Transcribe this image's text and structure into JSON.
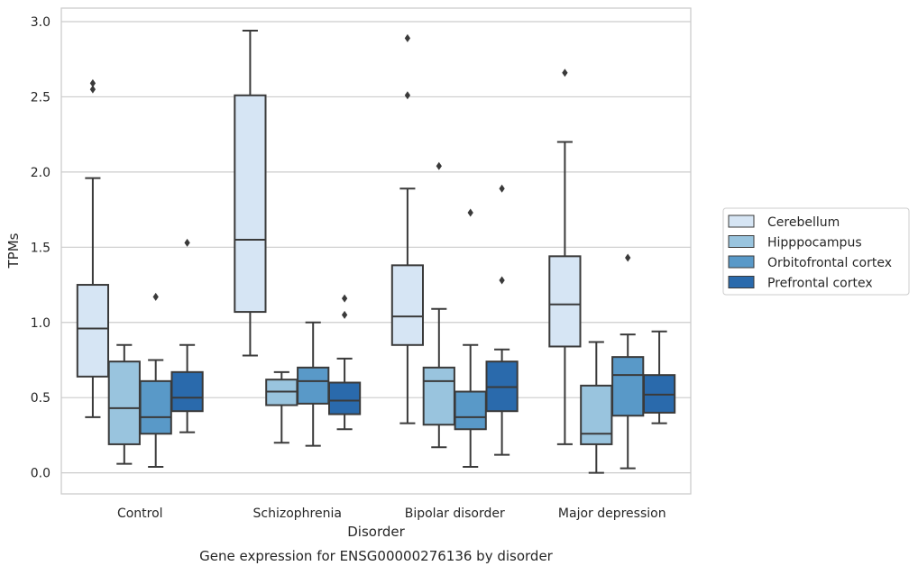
{
  "chart_data": {
    "type": "boxplot",
    "title": "",
    "caption": "Gene expression for ENSG00000276136 by disorder",
    "xlabel": "Disorder",
    "ylabel": "TPMs",
    "ylim": [
      -0.14,
      3.09
    ],
    "yticks": [
      0.0,
      0.5,
      1.0,
      1.5,
      2.0,
      2.5,
      3.0
    ],
    "ytick_labels": [
      "0.0",
      "0.5",
      "1.0",
      "1.5",
      "2.0",
      "2.5",
      "3.0"
    ],
    "categories": [
      "Control",
      "Schizophrenia",
      "Bipolar disorder",
      "Major depression"
    ],
    "grid": "horizontal",
    "legend_position": "outside-right",
    "series": [
      {
        "name": "Cerebellum",
        "color": "#d6e5f4",
        "boxes": [
          {
            "whisker_low": 0.37,
            "q1": 0.64,
            "median": 0.96,
            "q3": 1.25,
            "whisker_high": 1.96,
            "outliers": [
              2.55,
              2.59
            ]
          },
          {
            "whisker_low": 0.78,
            "q1": 1.07,
            "median": 1.55,
            "q3": 2.51,
            "whisker_high": 2.94,
            "outliers": []
          },
          {
            "whisker_low": 0.33,
            "q1": 0.85,
            "median": 1.04,
            "q3": 1.38,
            "whisker_high": 1.89,
            "outliers": [
              2.51,
              2.89
            ]
          },
          {
            "whisker_low": 0.19,
            "q1": 0.84,
            "median": 1.12,
            "q3": 1.44,
            "whisker_high": 2.2,
            "outliers": [
              2.66
            ]
          }
        ]
      },
      {
        "name": "Hipppocampus",
        "color": "#99c4de",
        "boxes": [
          {
            "whisker_low": 0.06,
            "q1": 0.19,
            "median": 0.43,
            "q3": 0.74,
            "whisker_high": 0.85,
            "outliers": []
          },
          {
            "whisker_low": 0.2,
            "q1": 0.45,
            "median": 0.54,
            "q3": 0.62,
            "whisker_high": 0.67,
            "outliers": []
          },
          {
            "whisker_low": 0.17,
            "q1": 0.32,
            "median": 0.61,
            "q3": 0.7,
            "whisker_high": 1.09,
            "outliers": [
              2.04
            ]
          },
          {
            "whisker_low": 0.0,
            "q1": 0.19,
            "median": 0.26,
            "q3": 0.58,
            "whisker_high": 0.87,
            "outliers": []
          }
        ]
      },
      {
        "name": "Orbitofrontal cortex",
        "color": "#5999c8",
        "boxes": [
          {
            "whisker_low": 0.04,
            "q1": 0.26,
            "median": 0.37,
            "q3": 0.61,
            "whisker_high": 0.75,
            "outliers": [
              1.17
            ]
          },
          {
            "whisker_low": 0.18,
            "q1": 0.46,
            "median": 0.61,
            "q3": 0.7,
            "whisker_high": 1.0,
            "outliers": []
          },
          {
            "whisker_low": 0.04,
            "q1": 0.29,
            "median": 0.37,
            "q3": 0.54,
            "whisker_high": 0.85,
            "outliers": [
              1.73
            ]
          },
          {
            "whisker_low": 0.03,
            "q1": 0.38,
            "median": 0.65,
            "q3": 0.77,
            "whisker_high": 0.92,
            "outliers": [
              1.43
            ]
          }
        ]
      },
      {
        "name": "Prefrontal cortex",
        "color": "#2a6aac",
        "boxes": [
          {
            "whisker_low": 0.27,
            "q1": 0.41,
            "median": 0.5,
            "q3": 0.67,
            "whisker_high": 0.85,
            "outliers": [
              1.53
            ]
          },
          {
            "whisker_low": 0.29,
            "q1": 0.39,
            "median": 0.48,
            "q3": 0.6,
            "whisker_high": 0.76,
            "outliers": [
              1.05,
              1.16
            ]
          },
          {
            "whisker_low": 0.12,
            "q1": 0.41,
            "median": 0.57,
            "q3": 0.74,
            "whisker_high": 0.82,
            "outliers": [
              1.28,
              1.89
            ]
          },
          {
            "whisker_low": 0.33,
            "q1": 0.4,
            "median": 0.52,
            "q3": 0.65,
            "whisker_high": 0.94,
            "outliers": []
          }
        ]
      }
    ]
  }
}
